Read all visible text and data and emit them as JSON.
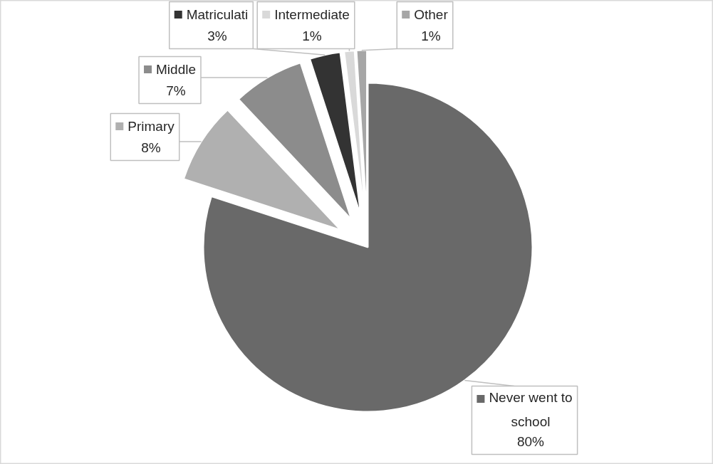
{
  "chart_data": {
    "type": "pie",
    "categories": [
      "Never went to school",
      "Primary",
      "Middle",
      "Matriculati",
      "Intermediate",
      "Other"
    ],
    "values": [
      80,
      8,
      7,
      3,
      1,
      1
    ],
    "colors": [
      "#696969",
      "#b0b0b0",
      "#8c8c8c",
      "#333333",
      "#d9d9d9",
      "#a6a6a6"
    ],
    "value_labels": [
      "80%",
      "8%",
      "7%",
      "3%",
      "1%",
      "1%"
    ],
    "legend": "left"
  }
}
